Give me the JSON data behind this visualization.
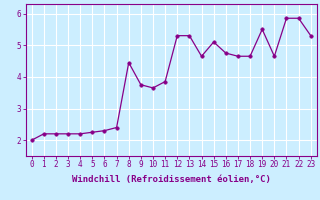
{
  "x": [
    0,
    1,
    2,
    3,
    4,
    5,
    6,
    7,
    8,
    9,
    10,
    11,
    12,
    13,
    14,
    15,
    16,
    17,
    18,
    19,
    20,
    21,
    22,
    23
  ],
  "y": [
    2.0,
    2.2,
    2.2,
    2.2,
    2.2,
    2.25,
    2.3,
    2.4,
    4.45,
    3.75,
    3.65,
    3.85,
    5.3,
    5.3,
    4.65,
    5.1,
    4.75,
    4.65,
    4.65,
    5.5,
    4.65,
    5.85,
    5.85,
    5.3
  ],
  "line_color": "#880088",
  "marker_color": "#880088",
  "bg_color": "#cceeff",
  "grid_color": "#ffffff",
  "axis_color": "#880088",
  "tick_color": "#880088",
  "xlabel": "Windchill (Refroidissement éolien,°C)",
  "ylim": [
    1.5,
    6.3
  ],
  "xlim": [
    -0.5,
    23.5
  ],
  "yticks": [
    2,
    3,
    4,
    5,
    6
  ],
  "xticks": [
    0,
    1,
    2,
    3,
    4,
    5,
    6,
    7,
    8,
    9,
    10,
    11,
    12,
    13,
    14,
    15,
    16,
    17,
    18,
    19,
    20,
    21,
    22,
    23
  ],
  "xlabel_fontsize": 6.5,
  "tick_fontsize": 5.5,
  "linewidth": 0.9,
  "markersize": 2.5
}
